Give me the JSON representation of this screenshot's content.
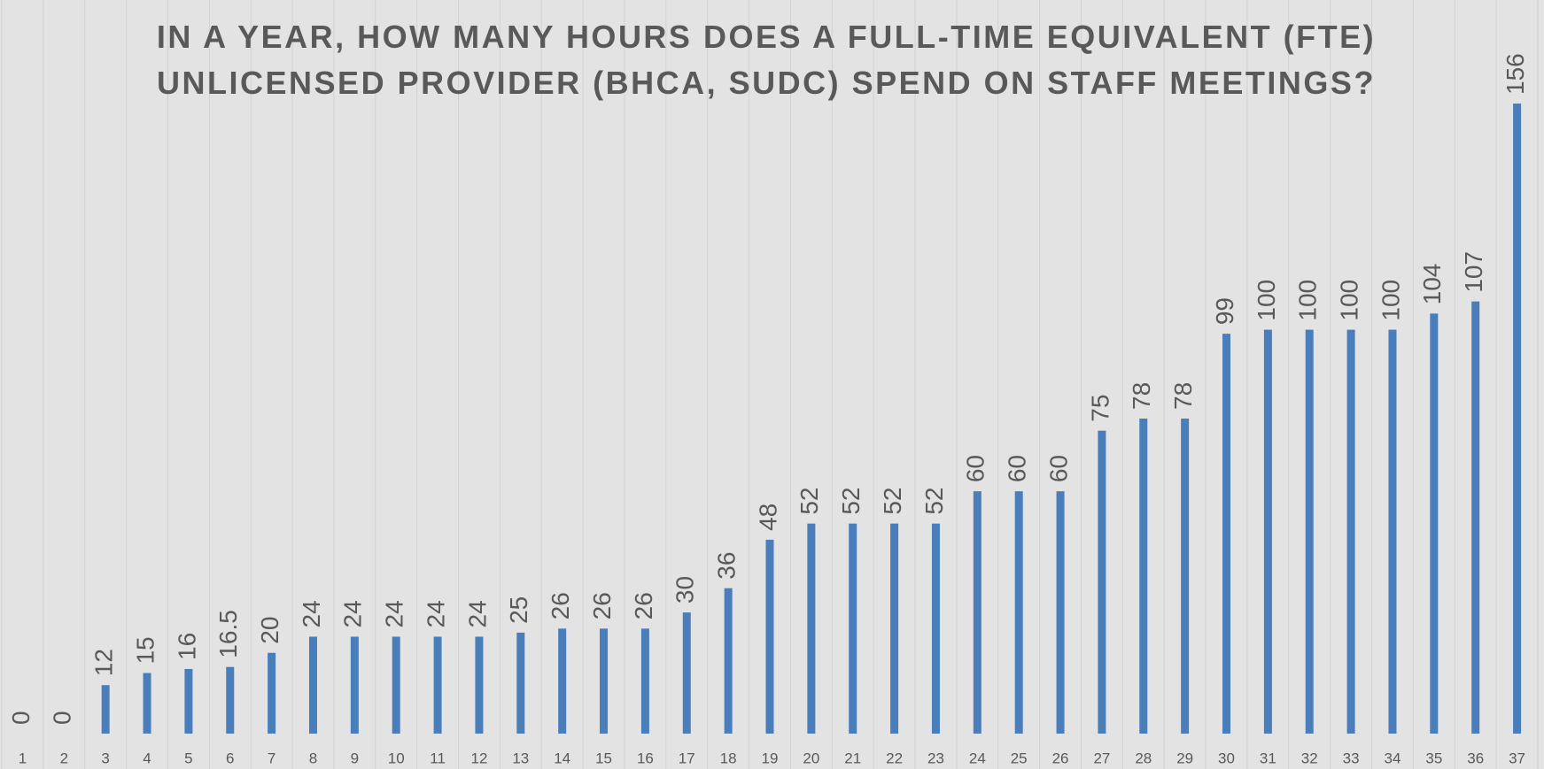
{
  "chart_data": {
    "type": "bar",
    "title": "IN A YEAR, HOW MANY HOURS DOES A FULL-TIME EQUIVALENT (FTE) UNLICENSED PROVIDER (BHCA, SUDC) SPEND ON STAFF MEETINGS?",
    "categories": [
      "1",
      "2",
      "3",
      "4",
      "5",
      "6",
      "7",
      "8",
      "9",
      "10",
      "11",
      "12",
      "13",
      "14",
      "15",
      "16",
      "17",
      "18",
      "19",
      "20",
      "21",
      "22",
      "23",
      "24",
      "25",
      "26",
      "27",
      "28",
      "29",
      "30",
      "31",
      "32",
      "33",
      "34",
      "35",
      "36",
      "37"
    ],
    "values": [
      0,
      0,
      12,
      15,
      16,
      16.5,
      20,
      24,
      24,
      24,
      24,
      24,
      25,
      26,
      26,
      26,
      30,
      36,
      48,
      52,
      52,
      52,
      52,
      60,
      60,
      60,
      75,
      78,
      78,
      99,
      100,
      100,
      100,
      100,
      104,
      107,
      156
    ],
    "color": "#4a7ebb"
  }
}
